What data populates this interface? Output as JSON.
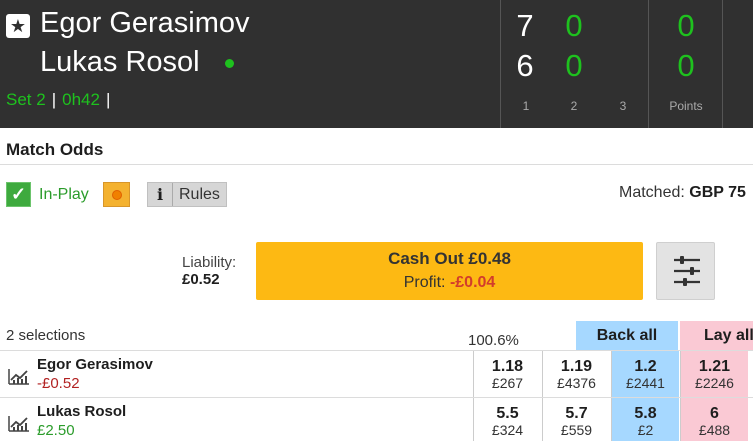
{
  "scoreboard": {
    "favourite_icon": "star-icon",
    "player1": "Egor Gerasimov",
    "player2": "Lukas Rosol",
    "serving": "player2",
    "set_label": "Set 2",
    "sep1": "|",
    "elapsed": "0h42",
    "sep2": "|",
    "set_scores": {
      "p1": [
        "7",
        "0",
        ""
      ],
      "p2": [
        "6",
        "0",
        ""
      ]
    },
    "points": {
      "p1": "0",
      "p2": "0"
    },
    "column_labels": [
      "1",
      "2",
      "3"
    ],
    "points_label": "Points",
    "colors": {
      "background": "#303030",
      "green": "#1ec11e"
    }
  },
  "market": {
    "title": "Match Odds",
    "inplay_label": "In-Play",
    "inplay_icon": "check-icon",
    "live_icon": "orange-dot-icon",
    "rules_icon_glyph": "i",
    "rules_label": "Rules",
    "matched_label": "Matched:",
    "matched_value": "GBP 75"
  },
  "cashout": {
    "liability_label": "Liability:",
    "liability_value": "£0.52",
    "button_label": "Cash Out £0.48",
    "profit_label": "Profit:",
    "profit_value": "-£0.04",
    "settings_icon": "sliders-icon",
    "color": "#fdb913"
  },
  "selections": {
    "count_label": "2 selections",
    "book_percent": "100.6%",
    "back_all_label": "Back all",
    "lay_all_label": "Lay all",
    "runners": [
      {
        "name": "Egor Gerasimov",
        "pnl": "-£0.52",
        "pnl_sign": "negative",
        "prices": [
          {
            "odds": "1.18",
            "amount": "£267"
          },
          {
            "odds": "1.19",
            "amount": "£4376"
          },
          {
            "odds": "1.2",
            "amount": "£2441"
          },
          {
            "odds": "1.21",
            "amount": "£2246"
          }
        ]
      },
      {
        "name": "Lukas Rosol",
        "pnl": "£2.50",
        "pnl_sign": "positive",
        "prices": [
          {
            "odds": "5.5",
            "amount": "£324"
          },
          {
            "odds": "5.7",
            "amount": "£559"
          },
          {
            "odds": "5.8",
            "amount": "£2"
          },
          {
            "odds": "6",
            "amount": "£488"
          }
        ]
      }
    ],
    "colors": {
      "back": "#a6d8ff",
      "lay": "#fac9d4"
    }
  }
}
